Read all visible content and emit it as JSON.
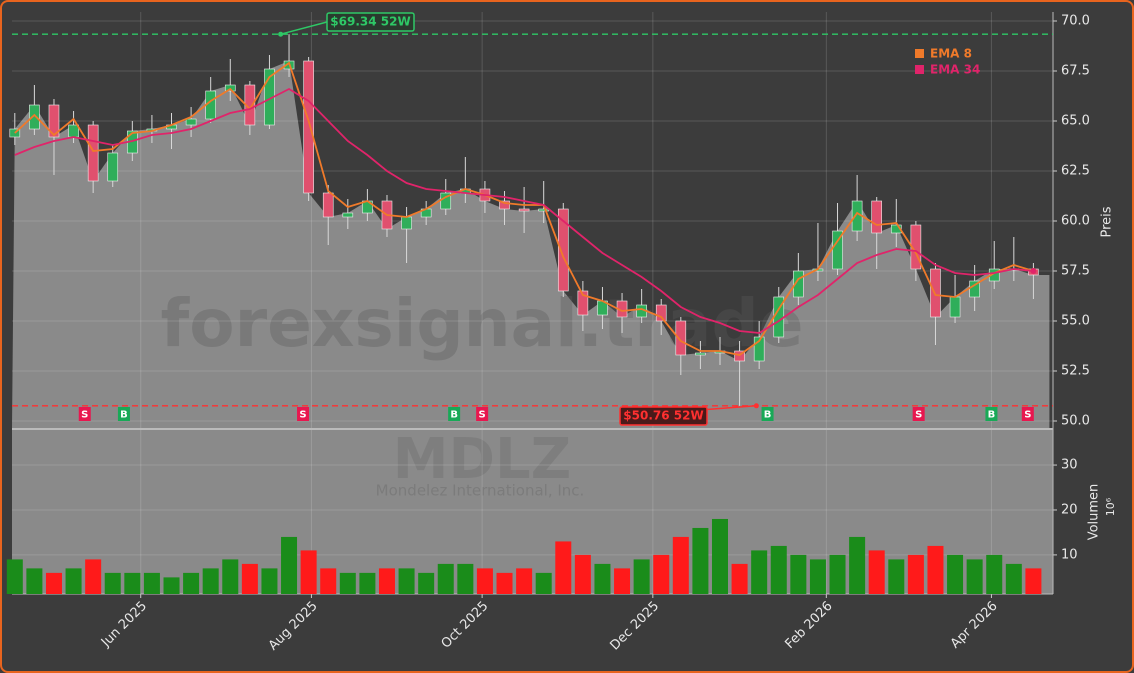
{
  "chart_data": {
    "type": "candlestick",
    "watermark": "forexsignal.trade",
    "symbol": "MDLZ",
    "company": "Mondelez International, Inc.",
    "ylabel": "Preis",
    "volume_label": "Volumen",
    "volume_unit": "10⁶",
    "x": [
      0,
      7,
      14,
      21,
      28,
      35,
      42,
      49,
      56,
      63,
      70,
      77,
      84,
      91,
      98,
      105,
      112,
      119,
      126,
      133,
      140,
      147,
      154,
      161,
      168,
      175,
      182,
      189,
      196,
      203,
      210,
      217,
      224,
      231,
      238,
      245,
      252,
      259,
      266,
      273,
      280,
      287,
      294,
      301,
      308,
      315,
      322,
      329,
      336,
      343,
      350,
      357,
      364
    ],
    "xlim": [
      -1,
      371
    ],
    "xticks": [
      {
        "value": 45,
        "label": "Jun 2025"
      },
      {
        "value": 106,
        "label": "Aug 2025"
      },
      {
        "value": 167,
        "label": "Oct 2025"
      },
      {
        "value": 228,
        "label": "Dec 2025"
      },
      {
        "value": 290,
        "label": "Feb 2026"
      },
      {
        "value": 349,
        "label": "Apr 2026"
      }
    ],
    "open": [
      64.2,
      64.6,
      65.8,
      64.2,
      64.8,
      62.0,
      63.4,
      64.5,
      64.6,
      64.8,
      65.1,
      66.5,
      66.8,
      64.8,
      67.6,
      68.0,
      61.4,
      60.2,
      60.4,
      61.0,
      59.6,
      60.2,
      60.6,
      61.4,
      61.6,
      61.0,
      60.6,
      60.5,
      60.6,
      56.5,
      55.3,
      56.0,
      55.2,
      55.8,
      55.0,
      53.3,
      53.4,
      53.5,
      53.0,
      54.2,
      56.2,
      57.5,
      57.6,
      59.5,
      61.0,
      59.4,
      59.8,
      57.6,
      55.2,
      56.2,
      57.0,
      57.6,
      57.6
    ],
    "high": [
      65.4,
      66.8,
      66.1,
      65.5,
      65.0,
      63.8,
      65.0,
      65.3,
      65.4,
      65.7,
      67.2,
      68.1,
      67.0,
      68.3,
      69.34,
      68.2,
      61.8,
      61.1,
      61.6,
      61.3,
      60.7,
      61.0,
      62.1,
      63.2,
      62.0,
      61.5,
      61.7,
      62.0,
      60.9,
      57.0,
      56.7,
      56.4,
      56.6,
      56.1,
      55.2,
      54.0,
      54.2,
      54.0,
      55.0,
      56.7,
      58.4,
      59.9,
      60.9,
      62.3,
      61.2,
      61.1,
      60.0,
      57.9,
      57.3,
      57.8,
      59.0,
      59.2,
      57.9
    ],
    "low": [
      63.8,
      64.3,
      62.3,
      63.9,
      61.4,
      61.7,
      63.0,
      63.9,
      63.6,
      64.2,
      64.9,
      66.0,
      64.3,
      64.6,
      67.2,
      61.0,
      58.8,
      59.6,
      60.0,
      59.2,
      57.9,
      59.8,
      60.3,
      60.9,
      60.4,
      59.8,
      59.4,
      59.9,
      56.2,
      54.5,
      54.6,
      54.4,
      54.9,
      54.3,
      52.3,
      52.6,
      52.8,
      50.76,
      52.6,
      53.9,
      55.8,
      57.0,
      57.3,
      59.0,
      57.6,
      58.7,
      57.0,
      53.8,
      54.9,
      55.5,
      56.6,
      57.0,
      56.1
    ],
    "close": [
      64.6,
      65.8,
      64.2,
      64.8,
      62.0,
      63.4,
      64.5,
      64.6,
      64.8,
      65.1,
      66.5,
      66.8,
      64.8,
      67.6,
      68.0,
      61.4,
      60.2,
      60.4,
      61.0,
      59.6,
      60.2,
      60.6,
      61.4,
      61.6,
      61.0,
      60.6,
      60.5,
      60.6,
      56.5,
      55.3,
      56.0,
      55.2,
      55.8,
      55.0,
      53.3,
      53.4,
      53.5,
      53.0,
      54.2,
      56.2,
      57.5,
      57.6,
      59.5,
      61.0,
      59.4,
      59.8,
      57.6,
      55.2,
      56.2,
      57.0,
      57.6,
      57.6,
      57.3
    ],
    "up_color": "#2fae5a",
    "down_color": "#e0506e",
    "area_color": "#8a8a8a",
    "series": [
      {
        "name": "EMA 8",
        "color": "#f07a2a",
        "values": [
          64.4,
          65.3,
          64.3,
          65.1,
          63.5,
          63.6,
          64.4,
          64.5,
          64.8,
          65.2,
          66.0,
          66.6,
          65.6,
          67.2,
          67.9,
          65.0,
          61.5,
          60.7,
          61.0,
          60.3,
          60.2,
          60.6,
          61.2,
          61.6,
          61.3,
          60.9,
          60.8,
          60.8,
          58.2,
          56.3,
          56.0,
          55.5,
          55.6,
          55.2,
          54.0,
          53.5,
          53.5,
          53.3,
          54.0,
          55.6,
          57.1,
          57.6,
          59.0,
          60.4,
          59.8,
          59.9,
          58.4,
          56.3,
          56.2,
          56.8,
          57.4,
          57.8,
          57.5
        ]
      },
      {
        "name": "EMA 34",
        "color": "#e0246a",
        "values": [
          63.3,
          63.7,
          64.0,
          64.2,
          64.0,
          63.8,
          64.0,
          64.3,
          64.4,
          64.6,
          65.0,
          65.4,
          65.6,
          66.1,
          66.6,
          66.0,
          65.0,
          64.0,
          63.3,
          62.5,
          61.9,
          61.6,
          61.5,
          61.4,
          61.3,
          61.2,
          61.0,
          60.8,
          60.0,
          59.2,
          58.4,
          57.8,
          57.2,
          56.5,
          55.7,
          55.2,
          54.9,
          54.5,
          54.4,
          55.0,
          55.7,
          56.3,
          57.1,
          57.9,
          58.3,
          58.6,
          58.5,
          57.8,
          57.4,
          57.3,
          57.4,
          57.6,
          57.5
        ]
      }
    ],
    "ylim": [
      49.65,
      70.45
    ],
    "yticks": [
      {
        "value": 50,
        "label": "50.0"
      },
      {
        "value": 52.5,
        "label": "52.5"
      },
      {
        "value": 55,
        "label": "55.0"
      },
      {
        "value": 57.5,
        "label": "57.5"
      },
      {
        "value": 60,
        "label": "60.0"
      },
      {
        "value": 62.5,
        "label": "62.5"
      },
      {
        "value": 65,
        "label": "65.0"
      },
      {
        "value": 67.5,
        "label": "67.5"
      },
      {
        "value": 70,
        "label": "70.0"
      }
    ],
    "volume": [
      9,
      7,
      6,
      7,
      9,
      6,
      6,
      6,
      5,
      6,
      7,
      9,
      8,
      7,
      14,
      11,
      7,
      6,
      6,
      7,
      7,
      6,
      8,
      8,
      7,
      6,
      7,
      6,
      13,
      10,
      8,
      7,
      9,
      10,
      14,
      16,
      18,
      8,
      11,
      12,
      10,
      9,
      10,
      14,
      11,
      9,
      10,
      12,
      10,
      9,
      10,
      8,
      7
    ],
    "volume_up_color": "#1a8c1a",
    "volume_down_color": "#ff1a1a",
    "vlim": [
      1.3,
      37.8
    ],
    "vticks": [
      10,
      20,
      30
    ],
    "high_52w": {
      "value": 69.34,
      "x": 95,
      "label": "$69.34 52W",
      "color": "#2ec866"
    },
    "low_52w": {
      "value": 50.76,
      "x": 265,
      "label": "$50.76 52W",
      "color": "#ff3030"
    },
    "signals": [
      {
        "x": 25,
        "label": "S"
      },
      {
        "x": 39,
        "label": "B"
      },
      {
        "x": 103,
        "label": "S"
      },
      {
        "x": 157,
        "label": "B"
      },
      {
        "x": 167,
        "label": "S"
      },
      {
        "x": 269,
        "label": "B"
      },
      {
        "x": 323,
        "label": "S"
      },
      {
        "x": 349,
        "label": "B"
      },
      {
        "x": 362,
        "label": "S"
      }
    ],
    "sell_color": "#e8174f",
    "buy_color": "#18a957",
    "grid": true,
    "legend": "upper right"
  }
}
